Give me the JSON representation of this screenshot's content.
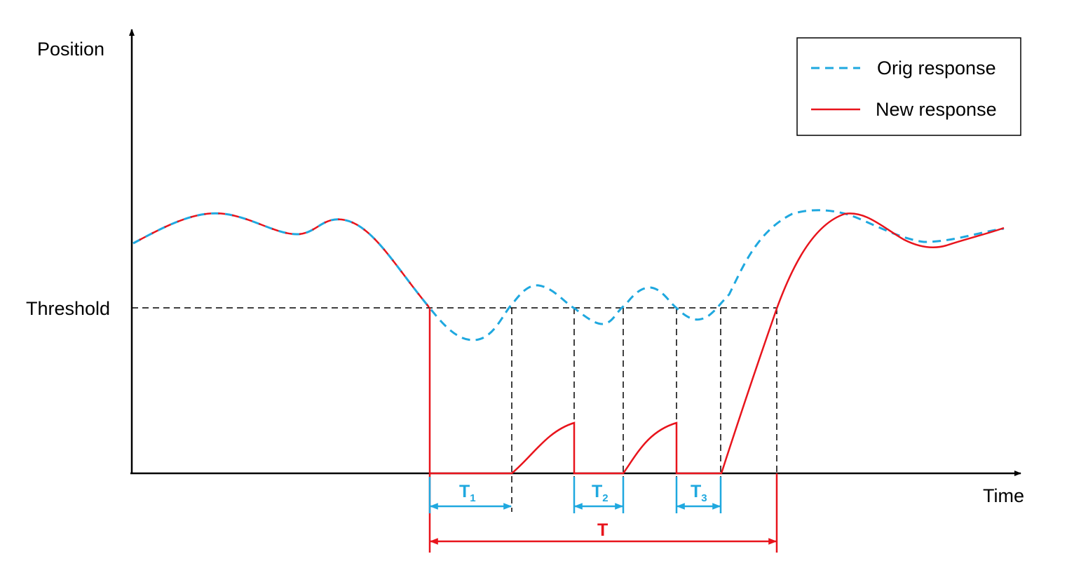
{
  "axes": {
    "y_label": "Position",
    "x_label": "Time",
    "threshold_label": "Threshold"
  },
  "legend": {
    "orig_label": "Orig response",
    "new_label": "New response"
  },
  "intervals": {
    "t1": {
      "main": "T",
      "sub": "1"
    },
    "t2": {
      "main": "T",
      "sub": "2"
    },
    "t3": {
      "main": "T",
      "sub": "3"
    },
    "total": "T"
  },
  "colors": {
    "orig": "#1fa8df",
    "new": "#e8141c",
    "axis": "#000000",
    "guide": "#000000"
  }
}
